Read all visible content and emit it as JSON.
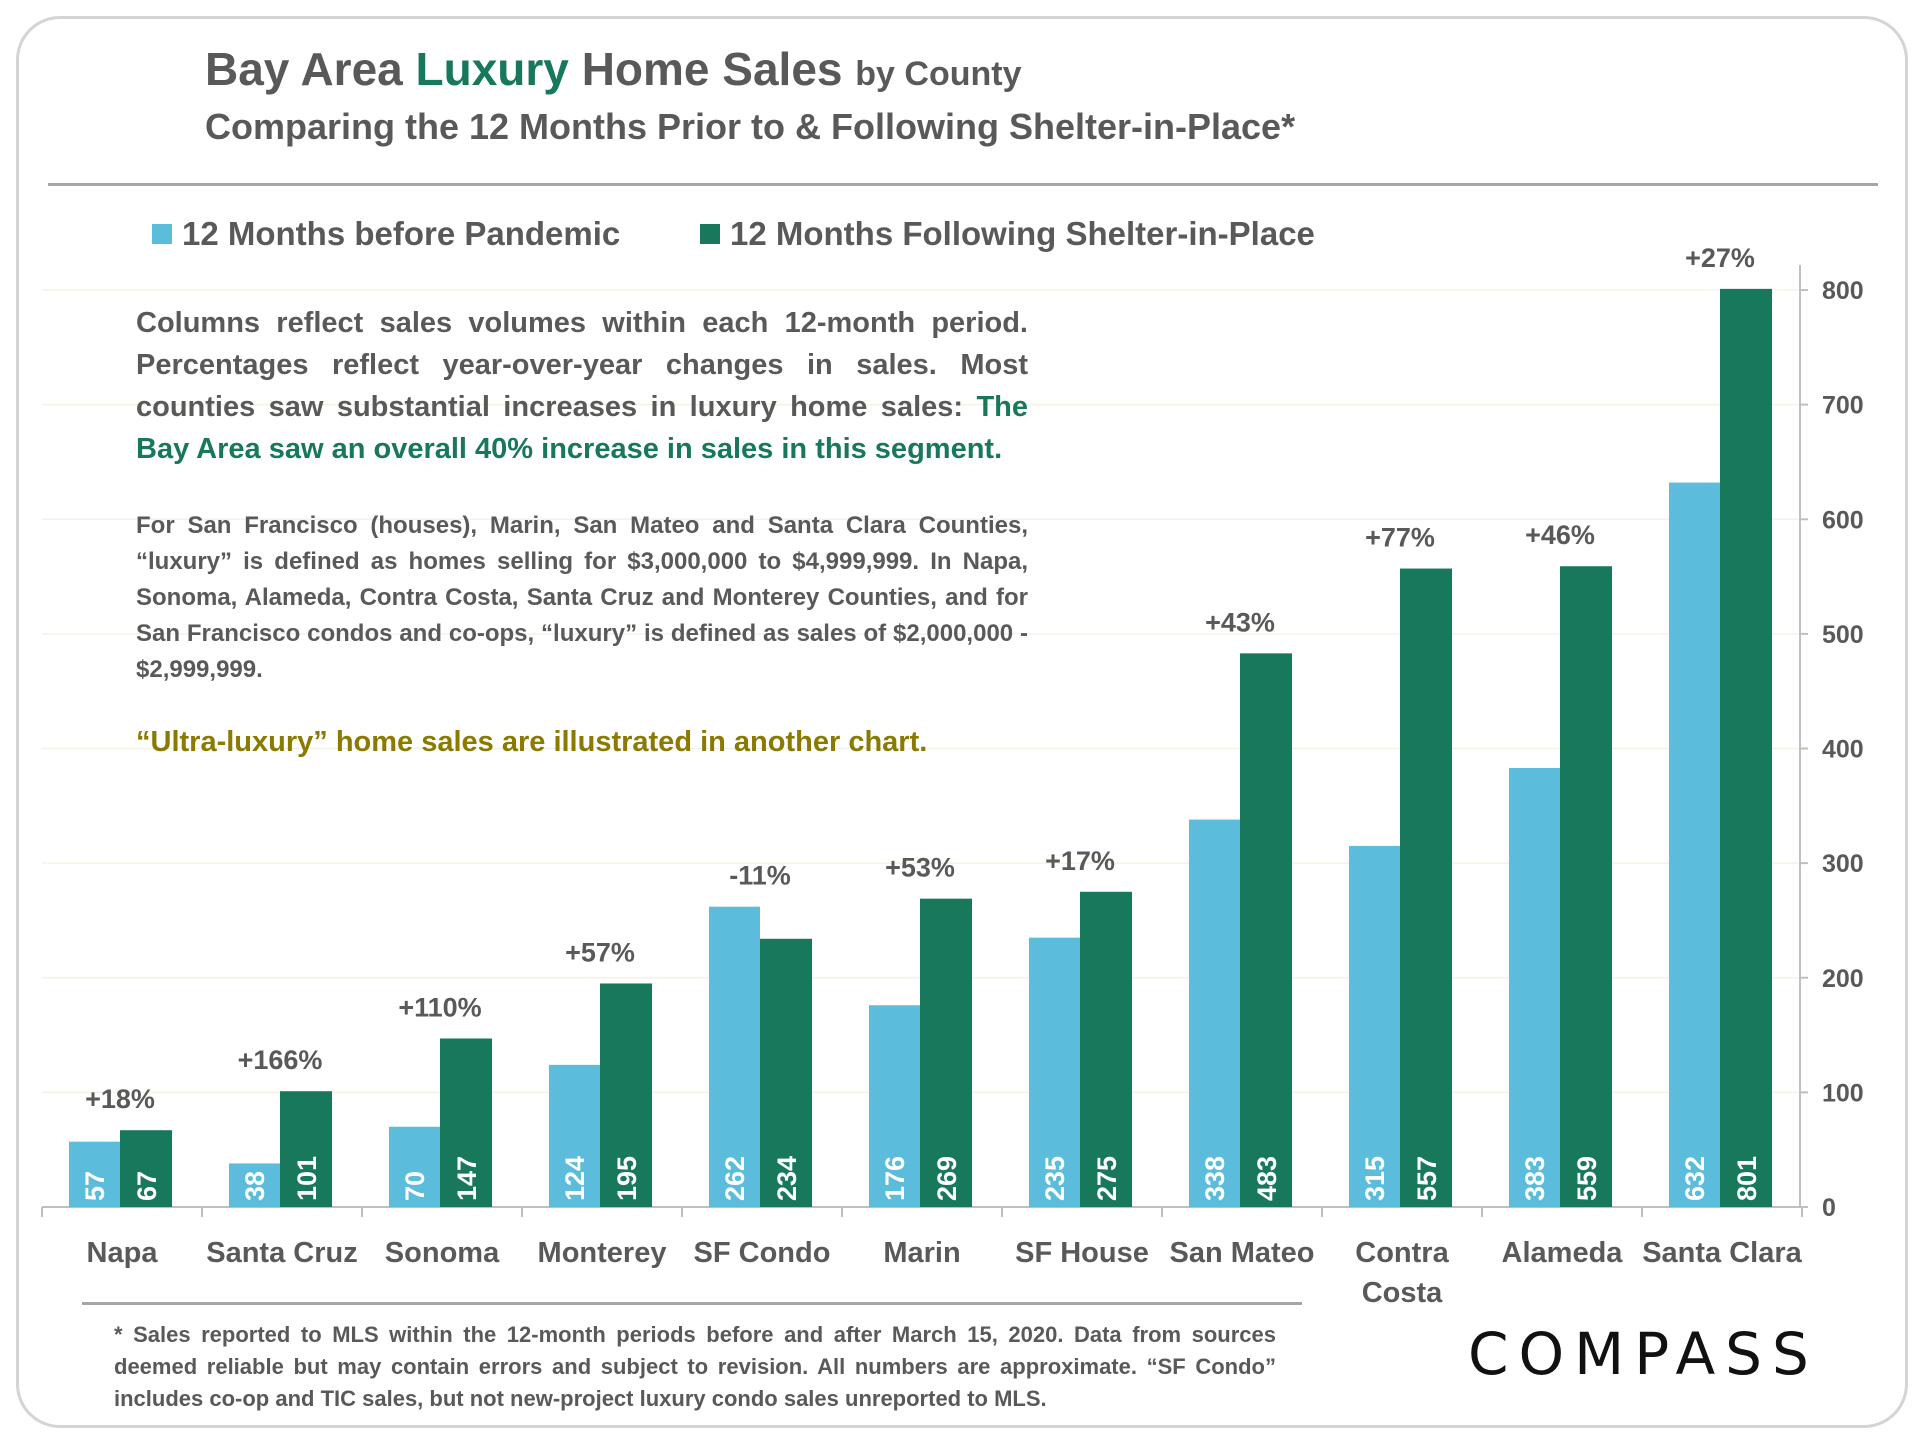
{
  "header": {
    "title_part1": "Bay Area",
    "title_accent": "Luxury",
    "title_part2": "Home Sales",
    "title_small": "by County",
    "subtitle": "Comparing the 12 Months Prior to & Following Shelter-in-Place*"
  },
  "legend": {
    "before_label": "12 Months before Pandemic",
    "after_label": "12 Months Following Shelter-in-Place"
  },
  "notes": {
    "para1_text": "Columns reflect sales volumes within each 12-month period. Percentages reflect year-over-year changes in sales. Most counties saw substantial increases in luxury home sales: ",
    "para1_highlight": "The Bay Area saw an overall 40% increase in sales in this segment.",
    "para2": "For San Francisco (houses), Marin, San Mateo and Santa Clara Counties, “luxury” is defined as homes selling for $3,000,000 to $4,999,999. In Napa, Sonoma, Alameda, Contra Costa, Santa Cruz and Monterey Counties, and for San Francisco condos and co-ops, “luxury” is defined as sales of $2,000,000 - $2,999,999.",
    "para3": "“Ultra-luxury” home sales are illustrated in another chart."
  },
  "footnote": "* Sales reported to MLS within the 12-month periods before and after March 15, 2020. Data from sources deemed reliable but may contain errors and subject to revision.  All numbers are approximate. “SF Condo” includes co-op and TIC sales, but not new-project luxury condo sales unreported to MLS.",
  "brand": "COMPASS",
  "colors": {
    "before": "#5bbcdb",
    "after": "#17785b",
    "text": "#595959",
    "accent_green": "#17785b",
    "gold": "#8a7a00"
  },
  "chart_data": {
    "type": "bar",
    "title": "Bay Area Luxury Home Sales by County",
    "categories": [
      [
        "Napa"
      ],
      [
        "Santa Cruz"
      ],
      [
        "Sonoma"
      ],
      [
        "Monterey"
      ],
      [
        "SF Condo"
      ],
      [
        "Marin"
      ],
      [
        "SF House"
      ],
      [
        "San Mateo"
      ],
      [
        "Contra",
        "Costa"
      ],
      [
        "Alameda"
      ],
      [
        "Santa Clara"
      ]
    ],
    "series": [
      {
        "name": "12 Months before Pandemic",
        "values": [
          57,
          38,
          70,
          124,
          262,
          176,
          235,
          338,
          315,
          383,
          632
        ]
      },
      {
        "name": "12 Months Following Shelter-in-Place",
        "values": [
          67,
          101,
          147,
          195,
          234,
          269,
          275,
          483,
          557,
          559,
          801
        ]
      }
    ],
    "changes": [
      "+18%",
      "+166%",
      "+110%",
      "+57%",
      "-11%",
      "+53%",
      "+17%",
      "+43%",
      "+77%",
      "+46%",
      "+27%"
    ],
    "y_ticks": [
      0,
      100,
      200,
      300,
      400,
      500,
      600,
      700,
      800
    ],
    "ylim": [
      0,
      820
    ],
    "y_axis_side": "right",
    "legend_position": "top-left"
  }
}
